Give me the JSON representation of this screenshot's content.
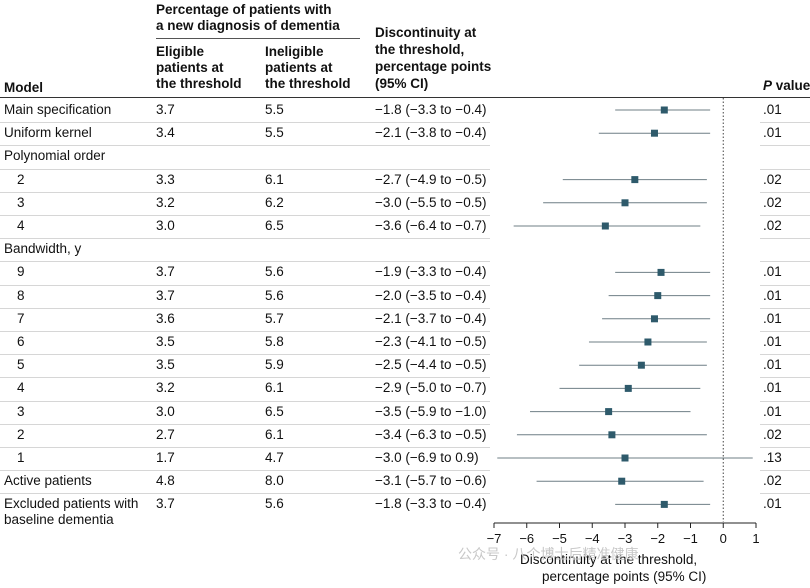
{
  "header": {
    "group_line1": "Percentage of patients with",
    "group_line2": "a new diagnosis of dementia",
    "model": "Model",
    "eligible_l1": "Eligible",
    "eligible_l2": "patients at",
    "eligible_l3": "the threshold",
    "ineligible_l1": "Ineligible",
    "ineligible_l2": "patients at",
    "ineligible_l3": "the threshold",
    "disc_l1": "Discontinuity at",
    "disc_l2": "the threshold,",
    "disc_l3": "percentage points",
    "disc_l4": "(95% CI)",
    "pvalue_p": "P",
    "pvalue_rest": " value"
  },
  "chart_data": {
    "type": "forest",
    "xlabel": "Discontinuity at the threshold, percentage points (95% CI)",
    "xlim": [
      -7,
      1
    ],
    "xticks": [
      "−7",
      "−6",
      "−5",
      "−4",
      "−3",
      "−2",
      "−1",
      "0",
      "1"
    ],
    "xtick_values": [
      -7,
      -6,
      -5,
      -4,
      -3,
      -2,
      -1,
      0,
      1
    ],
    "reference_line": 0,
    "marker_color": "#2e5a6b",
    "rows": [
      {
        "label": "Main specification",
        "indent": false,
        "eligible": "3.7",
        "ineligible": "5.5",
        "ci_text": "−1.8 (−3.3 to −0.4)",
        "p": ".01",
        "est": -1.8,
        "lo": -3.3,
        "hi": -0.4
      },
      {
        "label": "Uniform kernel",
        "indent": false,
        "eligible": "3.4",
        "ineligible": "5.5",
        "ci_text": "−2.1 (−3.8 to −0.4)",
        "p": ".01",
        "est": -2.1,
        "lo": -3.8,
        "hi": -0.4
      },
      {
        "label": "Polynomial order",
        "indent": false,
        "heading": true
      },
      {
        "label": "2",
        "indent": true,
        "eligible": "3.3",
        "ineligible": "6.1",
        "ci_text": "−2.7 (−4.9 to −0.5)",
        "p": ".02",
        "est": -2.7,
        "lo": -4.9,
        "hi": -0.5
      },
      {
        "label": "3",
        "indent": true,
        "eligible": "3.2",
        "ineligible": "6.2",
        "ci_text": "−3.0 (−5.5 to −0.5)",
        "p": ".02",
        "est": -3.0,
        "lo": -5.5,
        "hi": -0.5
      },
      {
        "label": "4",
        "indent": true,
        "eligible": "3.0",
        "ineligible": "6.5",
        "ci_text": "−3.6 (−6.4 to −0.7)",
        "p": ".02",
        "est": -3.6,
        "lo": -6.4,
        "hi": -0.7
      },
      {
        "label": "Bandwidth, y",
        "indent": false,
        "heading": true
      },
      {
        "label": "9",
        "indent": true,
        "eligible": "3.7",
        "ineligible": "5.6",
        "ci_text": "−1.9 (−3.3 to −0.4)",
        "p": ".01",
        "est": -1.9,
        "lo": -3.3,
        "hi": -0.4
      },
      {
        "label": "8",
        "indent": true,
        "eligible": "3.7",
        "ineligible": "5.6",
        "ci_text": "−2.0 (−3.5 to −0.4)",
        "p": ".01",
        "est": -2.0,
        "lo": -3.5,
        "hi": -0.4
      },
      {
        "label": "7",
        "indent": true,
        "eligible": "3.6",
        "ineligible": "5.7",
        "ci_text": "−2.1 (−3.7 to −0.4)",
        "p": ".01",
        "est": -2.1,
        "lo": -3.7,
        "hi": -0.4
      },
      {
        "label": "6",
        "indent": true,
        "eligible": "3.5",
        "ineligible": "5.8",
        "ci_text": "−2.3 (−4.1 to −0.5)",
        "p": ".01",
        "est": -2.3,
        "lo": -4.1,
        "hi": -0.5
      },
      {
        "label": "5",
        "indent": true,
        "eligible": "3.5",
        "ineligible": "5.9",
        "ci_text": "−2.5 (−4.4 to −0.5)",
        "p": ".01",
        "est": -2.5,
        "lo": -4.4,
        "hi": -0.5
      },
      {
        "label": "4",
        "indent": true,
        "eligible": "3.2",
        "ineligible": "6.1",
        "ci_text": "−2.9 (−5.0 to −0.7)",
        "p": ".01",
        "est": -2.9,
        "lo": -5.0,
        "hi": -0.7
      },
      {
        "label": "3",
        "indent": true,
        "eligible": "3.0",
        "ineligible": "6.5",
        "ci_text": "−3.5 (−5.9 to −1.0)",
        "p": ".01",
        "est": -3.5,
        "lo": -5.9,
        "hi": -1.0
      },
      {
        "label": "2",
        "indent": true,
        "eligible": "2.7",
        "ineligible": "6.1",
        "ci_text": "−3.4 (−6.3 to −0.5)",
        "p": ".02",
        "est": -3.4,
        "lo": -6.3,
        "hi": -0.5
      },
      {
        "label": "1",
        "indent": true,
        "eligible": "1.7",
        "ineligible": "4.7",
        "ci_text": "−3.0 (−6.9 to 0.9)",
        "p": ".13",
        "est": -3.0,
        "lo": -6.9,
        "hi": 0.9
      },
      {
        "label": "Active patients",
        "indent": false,
        "eligible": "4.8",
        "ineligible": "8.0",
        "ci_text": "−3.1 (−5.7 to −0.6)",
        "p": ".02",
        "est": -3.1,
        "lo": -5.7,
        "hi": -0.6
      },
      {
        "label": "Excluded patients with",
        "label2": "baseline dementia",
        "indent": false,
        "eligible": "3.7",
        "ineligible": "5.6",
        "ci_text": "−1.8 (−3.3 to −0.4)",
        "p": ".01",
        "est": -1.8,
        "lo": -3.3,
        "hi": -0.4
      }
    ]
  },
  "xaxis_label_line1": "Discontinuity at the threshold,",
  "xaxis_label_line2": "percentage points (95% CI)",
  "watermark": "公众号 · 八个博士后精准健康"
}
